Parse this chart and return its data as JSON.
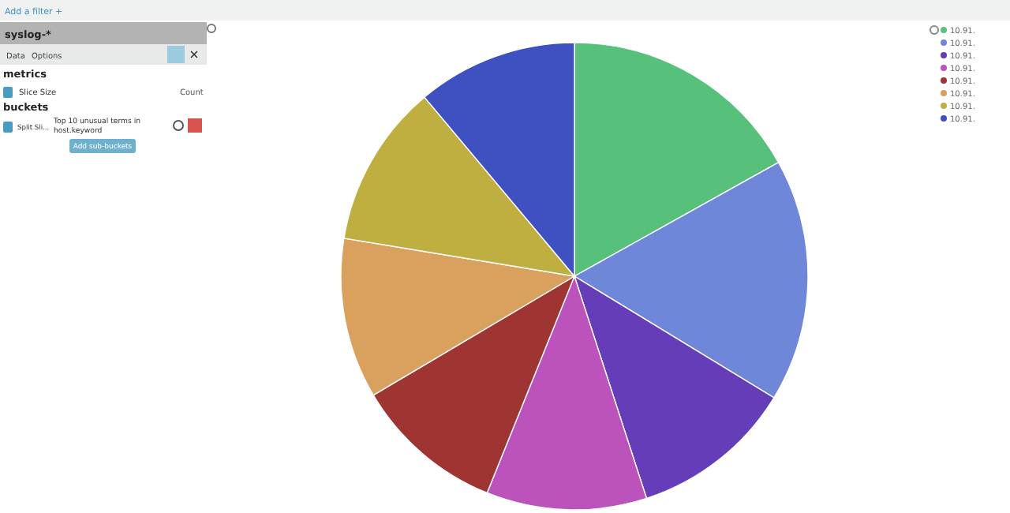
{
  "chart_data": {
    "type": "pie",
    "categories": [
      "10.91.",
      "10.91.",
      "10.91.",
      "10.91.",
      "10.91.",
      "10.91.",
      "10.91.",
      "10.91."
    ],
    "values": [
      16.9,
      16.8,
      11.3,
      11.1,
      10.4,
      11.1,
      11.3,
      11.1
    ],
    "colors": [
      "#57c17b",
      "#6f87d8",
      "#663db8",
      "#bc52bc",
      "#9e3533",
      "#daa05d",
      "#bfaf40",
      "#3f51c1"
    ],
    "legend": "top right",
    "annotations": [
      "Add a filter +",
      "syslog-*",
      "Data",
      "Options",
      "metrics",
      "Slice Size",
      "Count",
      "buckets",
      "Split Sli...",
      "Top 10 unusual terms in host.keyword",
      "Add sub-buckets"
    ]
  }
}
